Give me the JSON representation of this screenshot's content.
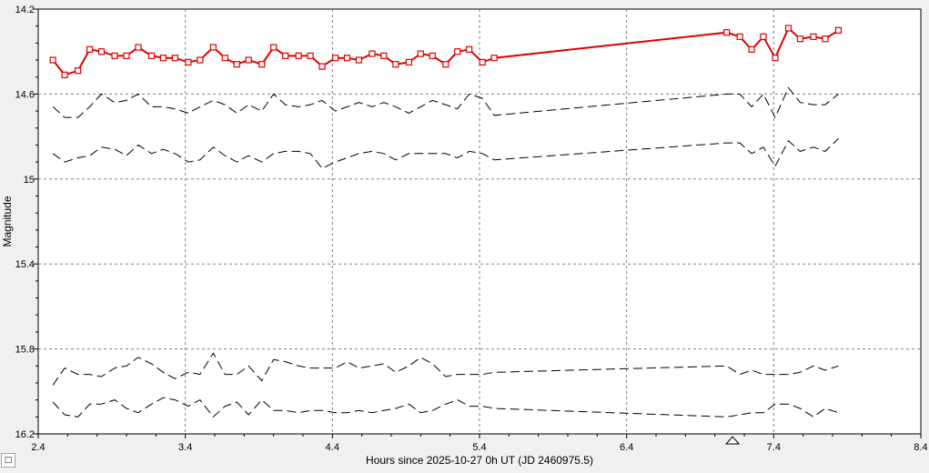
{
  "chart_data": {
    "type": "line",
    "xlabel": "Hours since 2025-10-27 0h UT (JD 2460975.5)",
    "ylabel": "Magnitude",
    "xlim": [
      2.4,
      8.4
    ],
    "ylim": [
      16.2,
      14.2
    ],
    "y_inverted": true,
    "x_ticks": [
      "2.4",
      "3.4",
      "4.4",
      "5.4",
      "6.4",
      "7.4",
      "8.4"
    ],
    "y_ticks": [
      "14.2",
      "14.6",
      "15",
      "15.4",
      "15.8",
      "16.2"
    ],
    "grid": true,
    "marker_x": 7.12,
    "series": [
      {
        "style": "red-squares",
        "color": "#e00000",
        "x": [
          2.5,
          2.58,
          2.67,
          2.75,
          2.83,
          2.92,
          3.0,
          3.08,
          3.17,
          3.25,
          3.33,
          3.42,
          3.5,
          3.59,
          3.67,
          3.75,
          3.83,
          3.92,
          4.0,
          4.08,
          4.17,
          4.25,
          4.33,
          4.42,
          4.5,
          4.58,
          4.67,
          4.75,
          4.83,
          4.92,
          5.0,
          5.08,
          5.17,
          5.25,
          5.33,
          5.42,
          5.5,
          7.08,
          7.17,
          7.25,
          7.33,
          7.41,
          7.5,
          7.58,
          7.67,
          7.75,
          7.84
        ],
        "y": [
          14.44,
          14.51,
          14.49,
          14.39,
          14.4,
          14.42,
          14.42,
          14.38,
          14.42,
          14.43,
          14.43,
          14.45,
          14.44,
          14.38,
          14.43,
          14.46,
          14.44,
          14.46,
          14.38,
          14.42,
          14.42,
          14.42,
          14.47,
          14.43,
          14.43,
          14.44,
          14.41,
          14.42,
          14.46,
          14.45,
          14.41,
          14.42,
          14.46,
          14.4,
          14.39,
          14.45,
          14.43,
          14.31,
          14.33,
          14.39,
          14.33,
          14.43,
          14.29,
          14.34,
          14.33,
          14.34,
          14.3
        ]
      },
      {
        "style": "dashed",
        "color": "#000000",
        "x": [
          2.5,
          2.58,
          2.67,
          2.75,
          2.83,
          2.92,
          3.0,
          3.08,
          3.17,
          3.25,
          3.33,
          3.42,
          3.5,
          3.59,
          3.67,
          3.75,
          3.83,
          3.92,
          4.0,
          4.08,
          4.17,
          4.25,
          4.33,
          4.42,
          4.5,
          4.58,
          4.67,
          4.75,
          4.83,
          4.92,
          5.0,
          5.08,
          5.17,
          5.25,
          5.33,
          5.42,
          5.5,
          7.08,
          7.17,
          7.25,
          7.33,
          7.41,
          7.5,
          7.58,
          7.67,
          7.75,
          7.84
        ],
        "y": [
          14.66,
          14.71,
          14.71,
          14.66,
          14.6,
          14.64,
          14.63,
          14.6,
          14.66,
          14.66,
          14.67,
          14.69,
          14.66,
          14.63,
          14.65,
          14.69,
          14.65,
          14.68,
          14.6,
          14.65,
          14.66,
          14.65,
          14.63,
          14.68,
          14.66,
          14.64,
          14.66,
          14.64,
          14.66,
          14.69,
          14.66,
          14.63,
          14.65,
          14.67,
          14.6,
          14.62,
          14.7,
          14.6,
          14.6,
          14.66,
          14.6,
          14.71,
          14.57,
          14.64,
          14.65,
          14.65,
          14.6
        ]
      },
      {
        "style": "dashed",
        "color": "#000000",
        "x": [
          2.5,
          2.58,
          2.67,
          2.75,
          2.83,
          2.92,
          3.0,
          3.08,
          3.17,
          3.25,
          3.33,
          3.42,
          3.5,
          3.59,
          3.67,
          3.75,
          3.83,
          3.92,
          4.0,
          4.08,
          4.17,
          4.25,
          4.33,
          4.42,
          4.5,
          4.58,
          4.67,
          4.75,
          4.83,
          4.92,
          5.0,
          5.08,
          5.17,
          5.25,
          5.33,
          5.42,
          5.5,
          7.08,
          7.17,
          7.25,
          7.33,
          7.41,
          7.5,
          7.58,
          7.67,
          7.75,
          7.84
        ],
        "y": [
          14.88,
          14.92,
          14.9,
          14.89,
          14.85,
          14.86,
          14.89,
          14.84,
          14.88,
          14.86,
          14.88,
          14.92,
          14.91,
          14.85,
          14.89,
          14.92,
          14.89,
          14.92,
          14.88,
          14.87,
          14.87,
          14.88,
          14.95,
          14.92,
          14.9,
          14.88,
          14.87,
          14.88,
          14.91,
          14.88,
          14.88,
          14.88,
          14.88,
          14.9,
          14.87,
          14.88,
          14.91,
          14.83,
          14.83,
          14.88,
          14.85,
          14.94,
          14.82,
          14.87,
          14.85,
          14.87,
          14.81
        ]
      },
      {
        "style": "dashed",
        "color": "#000000",
        "x": [
          2.5,
          2.58,
          2.67,
          2.75,
          2.83,
          2.92,
          3.0,
          3.08,
          3.17,
          3.25,
          3.33,
          3.42,
          3.5,
          3.59,
          3.67,
          3.75,
          3.83,
          3.92,
          4.0,
          4.08,
          4.17,
          4.25,
          4.33,
          4.42,
          4.5,
          4.58,
          4.67,
          4.75,
          4.83,
          4.92,
          5.0,
          5.08,
          5.17,
          5.25,
          5.33,
          5.42,
          5.5,
          7.08,
          7.17,
          7.25,
          7.33,
          7.41,
          7.5,
          7.58,
          7.67,
          7.75,
          7.84
        ],
        "y": [
          15.97,
          15.89,
          15.92,
          15.92,
          15.93,
          15.89,
          15.88,
          15.84,
          15.87,
          15.91,
          15.94,
          15.91,
          15.92,
          15.82,
          15.92,
          15.92,
          15.88,
          15.95,
          15.85,
          15.86,
          15.88,
          15.89,
          15.89,
          15.89,
          15.86,
          15.89,
          15.88,
          15.87,
          15.91,
          15.88,
          15.84,
          15.87,
          15.93,
          15.92,
          15.92,
          15.92,
          15.91,
          15.88,
          15.92,
          15.9,
          15.92,
          15.92,
          15.92,
          15.91,
          15.88,
          15.9,
          15.88
        ]
      },
      {
        "style": "dashed",
        "color": "#000000",
        "x": [
          2.5,
          2.58,
          2.67,
          2.75,
          2.83,
          2.92,
          3.0,
          3.08,
          3.17,
          3.25,
          3.33,
          3.42,
          3.5,
          3.59,
          3.67,
          3.75,
          3.83,
          3.92,
          4.0,
          4.08,
          4.17,
          4.25,
          4.33,
          4.42,
          4.5,
          4.58,
          4.67,
          4.75,
          4.83,
          4.92,
          5.0,
          5.08,
          5.17,
          5.25,
          5.33,
          5.42,
          5.5,
          7.08,
          7.17,
          7.25,
          7.33,
          7.41,
          7.5,
          7.58,
          7.67,
          7.75,
          7.84
        ],
        "y": [
          16.05,
          16.11,
          16.12,
          16.06,
          16.06,
          16.04,
          16.08,
          16.1,
          16.06,
          16.03,
          16.04,
          16.07,
          16.04,
          16.12,
          16.07,
          16.05,
          16.11,
          16.04,
          16.09,
          16.09,
          16.1,
          16.09,
          16.09,
          16.1,
          16.1,
          16.09,
          16.1,
          16.09,
          16.08,
          16.06,
          16.1,
          16.09,
          16.06,
          16.04,
          16.07,
          16.07,
          16.08,
          16.12,
          16.11,
          16.1,
          16.1,
          16.06,
          16.06,
          16.08,
          16.12,
          16.08,
          16.1
        ]
      }
    ]
  },
  "legend_button_label": "□"
}
